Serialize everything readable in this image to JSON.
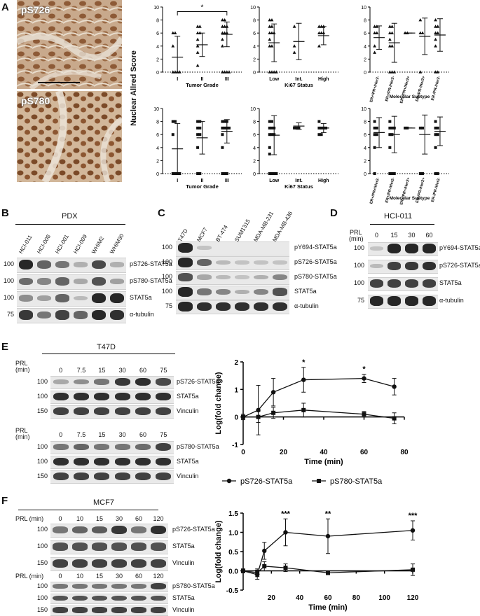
{
  "panels": {
    "A": "A",
    "B": "B",
    "C": "C",
    "D": "D",
    "E": "E",
    "F": "F"
  },
  "panelA": {
    "images": [
      {
        "label": "pS726"
      },
      {
        "label": "pS780"
      }
    ],
    "ylabel": "Nuclear Allred Score",
    "significance": "*",
    "yticks": [
      "0",
      "2",
      "4",
      "6",
      "8",
      "10"
    ],
    "charts": [
      {
        "type": "scatter",
        "xlabel": "Tumor Grade",
        "categories": [
          "I",
          "II",
          "III"
        ],
        "ylim": [
          0,
          10
        ],
        "marker": "triangle",
        "series": [
          {
            "values": [
              [
                0,
                0,
                0,
                0,
                4,
                6,
                6
              ],
              [
                1,
                3,
                4,
                5,
                6,
                6,
                7,
                7
              ],
              [
                0,
                0,
                0,
                0,
                4,
                5,
                6,
                6,
                6,
                7,
                7,
                7,
                8,
                8
              ]
            ]
          }
        ],
        "means": [
          2.3,
          4.2,
          5.8
        ],
        "sd": [
          3.2,
          1.8,
          1.9
        ]
      },
      {
        "type": "scatter",
        "xlabel": "Ki67 Status",
        "categories": [
          "Low",
          "Int.",
          "High"
        ],
        "ylim": [
          0,
          10
        ],
        "marker": "triangle",
        "series": [
          {
            "values": [
              [
                0,
                0,
                0,
                0,
                4,
                4,
                5,
                6,
                6,
                6,
                7,
                7,
                8,
                8
              ],
              [
                3,
                4,
                7
              ],
              [
                4,
                6,
                6,
                6,
                7,
                7,
                7
              ]
            ]
          }
        ],
        "means": [
          4.5,
          4.7,
          5.6
        ],
        "sd": [
          2.9,
          2.8,
          1.4
        ]
      },
      {
        "type": "scatter",
        "xlabel": "Molecular Subtype",
        "categories": [
          "ER+/PR+/Her2-",
          "ER+/PR-/Her2-",
          "ER+/PR+/Her2+",
          "ER-/PR-/Her2+",
          "ER-/PR-/Her2-"
        ],
        "ylim": [
          0,
          10
        ],
        "marker": "triangle",
        "series": [
          {
            "values": [
              [
                3,
                4,
                6,
                6,
                7,
                7
              ],
              [
                0,
                0,
                0,
                4,
                4,
                5,
                6,
                6,
                7,
                7
              ],
              [
                6,
                6
              ],
              [
                0,
                6,
                6,
                8
              ],
              [
                0,
                0,
                4,
                5,
                6,
                6,
                7,
                7,
                8
              ]
            ]
          }
        ],
        "means": [
          5.3,
          4.5,
          6,
          5.5,
          5.7
        ],
        "sd": [
          1.8,
          3,
          0,
          2.8,
          2.5
        ]
      },
      {
        "type": "scatter",
        "xlabel": "Tumor Grade",
        "categories": [
          "I",
          "II",
          "III"
        ],
        "ylim": [
          0,
          10
        ],
        "marker": "square",
        "series": [
          {
            "values": [
              [
                0,
                0,
                0,
                0,
                6,
                8,
                8
              ],
              [
                0,
                0,
                4,
                6,
                6,
                7,
                7,
                8,
                8
              ],
              [
                0,
                0,
                0,
                4,
                6,
                7,
                7,
                7,
                7,
                8,
                8,
                8
              ]
            ]
          }
        ],
        "means": [
          3.8,
          5.5,
          6.5
        ],
        "sd": [
          3.9,
          2.5,
          1.8
        ]
      },
      {
        "type": "scatter",
        "xlabel": "Ki67 Status",
        "categories": [
          "Low",
          "Int.",
          "High"
        ],
        "ylim": [
          0,
          10
        ],
        "marker": "square",
        "series": [
          {
            "values": [
              [
                0,
                0,
                0,
                0,
                3,
                4,
                6,
                6,
                6,
                7,
                7,
                7,
                8,
                8
              ],
              [
                7,
                7,
                7
              ],
              [
                6,
                6,
                7,
                7,
                7,
                7,
                8
              ]
            ]
          }
        ],
        "means": [
          5.9,
          7.3,
          7
        ],
        "sd": [
          3,
          0.5,
          0.7
        ]
      },
      {
        "type": "scatter",
        "xlabel": "Molecular Subtype",
        "categories": [
          "ER+/PR+/Her2-",
          "ER+/PR-/Her2-",
          "ER+/PR+/Her2+",
          "ER-/PR-/Her2+",
          "ER-/PR-/Her2-"
        ],
        "ylim": [
          0,
          10
        ],
        "marker": "square",
        "series": [
          {
            "values": [
              [
                0,
                4,
                6,
                6,
                7,
                7,
                8
              ],
              [
                0,
                0,
                0,
                4,
                6,
                6,
                7,
                7,
                7,
                8
              ],
              [
                7,
                7
              ],
              [
                0,
                0,
                7,
                7
              ],
              [
                0,
                0,
                4,
                6,
                6,
                7,
                7,
                8
              ]
            ]
          }
        ],
        "means": [
          6.3,
          6,
          7,
          6,
          6.5
        ],
        "sd": [
          2.3,
          2.8,
          0,
          3,
          2.2
        ]
      }
    ]
  },
  "panelB": {
    "title": "PDX",
    "lanes": [
      "HCI-011",
      "HCI-008",
      "HCI-001",
      "HCI-009",
      "WHIM2",
      "WHIM30"
    ],
    "rows": [
      {
        "mw": "100",
        "label": "pS726-STAT5a",
        "int": [
          0.95,
          0.6,
          0.5,
          0.15,
          0.75,
          0.15
        ]
      },
      {
        "mw": "100",
        "label": "pS780-STAT5a",
        "int": [
          0.55,
          0.4,
          0.6,
          0.2,
          0.7,
          0.25
        ]
      },
      {
        "mw": "100",
        "label": "STAT5a",
        "int": [
          0.35,
          0.25,
          0.6,
          0.1,
          0.95,
          0.95
        ]
      },
      {
        "mw": "75",
        "label": "α-tubulin",
        "int": [
          0.85,
          0.5,
          0.8,
          0.6,
          0.95,
          0.9
        ]
      }
    ]
  },
  "panelC": {
    "lanes": [
      "T47D",
      "MCF7",
      "BT-474",
      "SUM1315",
      "MDA-MB-231",
      "MDA-MB-436"
    ],
    "rows": [
      {
        "mw": "100",
        "label": "pY694-STAT5a",
        "int": [
          0.95,
          0.05,
          0.02,
          0.02,
          0.02,
          0.02
        ]
      },
      {
        "mw": "100",
        "label": "pS726-STAT5a",
        "int": [
          0.95,
          0.6,
          0.1,
          0.05,
          0.05,
          0.05
        ]
      },
      {
        "mw": "100",
        "label": "pS780-STAT5a",
        "int": [
          0.7,
          0.2,
          0.1,
          0.05,
          0.15,
          0.4
        ]
      },
      {
        "mw": "100",
        "label": "STAT5a",
        "int": [
          0.95,
          0.5,
          0.4,
          0.15,
          0.4,
          0.7
        ]
      },
      {
        "mw": "75",
        "label": "α-tubulin",
        "int": [
          0.95,
          0.9,
          0.9,
          0.9,
          0.9,
          0.9
        ]
      }
    ]
  },
  "panelD": {
    "title": "HCI-011",
    "prl": "PRL",
    "min": "(min)",
    "lanes": [
      "0",
      "15",
      "30",
      "60"
    ],
    "rows": [
      {
        "mw": "100",
        "label": "pY694-STAT5a",
        "int": [
          0.05,
          0.95,
          0.95,
          0.95
        ]
      },
      {
        "mw": "100",
        "label": "pS726-STAT5a",
        "int": [
          0.1,
          0.8,
          0.85,
          0.9
        ]
      },
      {
        "mw": "100",
        "label": "STAT5a",
        "int": [
          0.8,
          0.8,
          0.8,
          0.8
        ]
      },
      {
        "mw": "75",
        "label": "α-tubulin",
        "int": [
          0.95,
          0.95,
          0.95,
          0.95
        ]
      }
    ]
  },
  "panelE": {
    "title": "T47D",
    "prl": "PRL",
    "min": "(min)",
    "lanes": [
      "0",
      "7.5",
      "15",
      "30",
      "60",
      "75"
    ],
    "blocks": [
      {
        "rows": [
          {
            "mw": "100",
            "label": "pS726-STAT5a",
            "int": [
              0.2,
              0.35,
              0.5,
              0.85,
              0.9,
              0.75
            ]
          },
          {
            "mw": "100",
            "label": "STAT5a",
            "int": [
              0.9,
              0.9,
              0.9,
              0.9,
              0.9,
              0.9
            ]
          },
          {
            "mw": "150",
            "label": "Vinculin",
            "int": [
              0.8,
              0.8,
              0.8,
              0.8,
              0.8,
              0.8
            ]
          }
        ]
      },
      {
        "rows": [
          {
            "mw": "100",
            "label": "pS780-STAT5a",
            "int": [
              0.5,
              0.6,
              0.5,
              0.5,
              0.55,
              0.8
            ]
          },
          {
            "mw": "100",
            "label": "STAT5a",
            "int": [
              0.9,
              0.9,
              0.9,
              0.9,
              0.9,
              0.9
            ]
          },
          {
            "mw": "150",
            "label": "Vinculin",
            "int": [
              0.8,
              0.8,
              0.8,
              0.8,
              0.8,
              0.8
            ]
          }
        ]
      }
    ]
  },
  "panelF": {
    "title": "MCF7",
    "prl": "PRL (min)",
    "lanes": [
      "0",
      "10",
      "15",
      "30",
      "60",
      "120"
    ],
    "blocks": [
      {
        "rows": [
          {
            "mw": "100",
            "label": "pS726-STAT5a",
            "int": [
              0.5,
              0.6,
              0.65,
              0.85,
              0.5,
              0.9
            ]
          },
          {
            "mw": "100",
            "label": "STAT5a",
            "int": [
              0.7,
              0.7,
              0.7,
              0.7,
              0.7,
              0.7
            ]
          },
          {
            "mw": "150",
            "label": "Vinculin",
            "int": [
              0.8,
              0.8,
              0.8,
              0.8,
              0.8,
              0.8
            ]
          }
        ]
      },
      {
        "rows": [
          {
            "mw": "100",
            "label": "pS780-STAT5a",
            "int": [
              0.5,
              0.5,
              0.5,
              0.5,
              0.5,
              0.8
            ]
          },
          {
            "mw": "100",
            "label": "STAT5a",
            "int": [
              0.7,
              0.7,
              0.7,
              0.7,
              0.7,
              0.7
            ]
          },
          {
            "mw": "150",
            "label": "Vinculin",
            "int": [
              0.8,
              0.8,
              0.8,
              0.8,
              0.8,
              0.8
            ]
          }
        ]
      }
    ]
  },
  "chart_data": [
    {
      "type": "line",
      "id": "E",
      "xlabel": "Time (min)",
      "ylabel": "Log(fold change)",
      "xlim": [
        0,
        80
      ],
      "ylim": [
        -1,
        2
      ],
      "xticks": [
        "0",
        "20",
        "40",
        "60",
        "80"
      ],
      "yticks": [
        "-1",
        "0",
        "1",
        "2"
      ],
      "series": [
        {
          "name": "pS726-STAT5a",
          "marker": "circle",
          "x": [
            0,
            7.5,
            15,
            30,
            60,
            75
          ],
          "y": [
            0,
            0.25,
            0.9,
            1.35,
            1.4,
            1.1
          ],
          "err": [
            0.1,
            0.9,
            0.5,
            0.45,
            0.15,
            0.3
          ]
        },
        {
          "name": "pS780-STAT5a",
          "marker": "square",
          "x": [
            0,
            7.5,
            15,
            30,
            60,
            75
          ],
          "y": [
            0,
            0,
            0.15,
            0.25,
            0.1,
            -0.05
          ],
          "err": [
            0.05,
            0.2,
            0.2,
            0.25,
            0.1,
            0.2
          ]
        }
      ],
      "annotations": [
        {
          "x": 30,
          "text": "*"
        },
        {
          "x": 60,
          "text": "*"
        }
      ]
    },
    {
      "type": "line",
      "id": "F",
      "xlabel": "Time (min)",
      "ylabel": "Log(fold change)",
      "xlim": [
        0,
        120
      ],
      "ylim": [
        -0.5,
        1.5
      ],
      "xticks": [
        "20",
        "40",
        "60",
        "80",
        "100",
        "120"
      ],
      "yticks": [
        "-0.5",
        "0.0",
        "0.5",
        "1.0",
        "1.5"
      ],
      "series": [
        {
          "name": "pS726-STAT5a",
          "marker": "circle",
          "x": [
            0,
            10,
            15,
            30,
            60,
            120
          ],
          "y": [
            0,
            -0.1,
            0.52,
            1.0,
            0.9,
            1.05
          ],
          "err": [
            0.05,
            0.12,
            0.22,
            0.35,
            0.45,
            0.25
          ]
        },
        {
          "name": "pS780-STAT5a",
          "marker": "square",
          "x": [
            0,
            10,
            15,
            30,
            60,
            120
          ],
          "y": [
            0,
            -0.05,
            0.12,
            0.08,
            -0.05,
            0.03
          ],
          "err": [
            0.05,
            0.1,
            0.12,
            0.1,
            0.05,
            0.15
          ]
        }
      ],
      "annotations": [
        {
          "x": 30,
          "text": "***"
        },
        {
          "x": 60,
          "text": "**"
        },
        {
          "x": 120,
          "text": "***"
        }
      ]
    }
  ]
}
